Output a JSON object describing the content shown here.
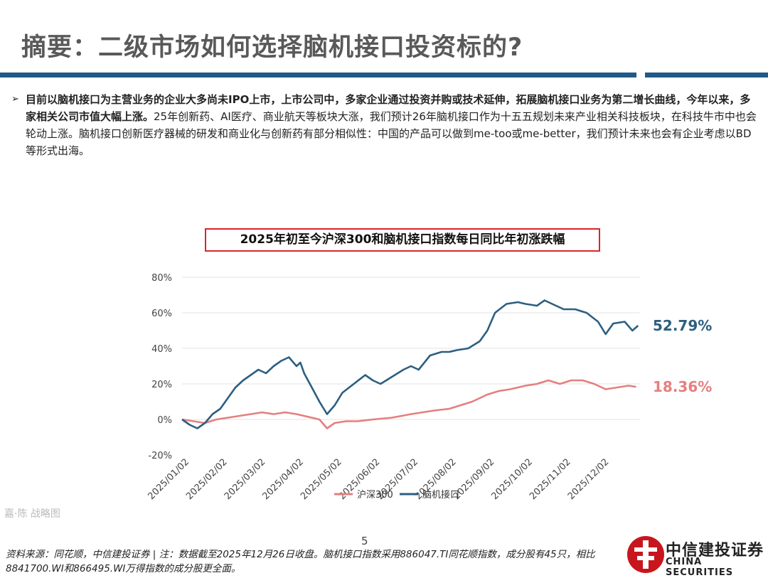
{
  "title": "摘要：二级市场如何选择脑机接口投资标的?",
  "summary": {
    "bold_text": "目前以脑机接口为主营业务的企业大多尚未IPO上市，上市公司中，多家企业通过投资并购或技术延伸，拓展脑机接口业务为第二增长曲线，今年以来，多家相关公司市值大幅上涨。",
    "text": "25年创新药、AI医疗、商业航天等板块大涨，我们预计26年脑机接口作为十五五规划未来产业相关科技板块，在科技牛市中也会轮动上涨。脑机接口创新医疗器械的研发和商业化与创新药有部分相似性：中国的产品可以做到me-too或me-better，我们预计未来也会有企业考虑以BD等形式出海。"
  },
  "watermark": "嘉·陈 战略图",
  "page_number": "5",
  "source_note": "资料来源：同花顺，中信建投证券 | 注：数据截至2025年12月26日收盘。脑机接口指数采用886047.TI同花顺指数，成分股有45只，相比8841700.WI和866495.WI万得指数的成分股更全面。",
  "logo": {
    "cn": "中信建投证券",
    "en": "CHINA SECURITIES",
    "color": "#c8161e"
  },
  "chart_data": {
    "type": "line",
    "title": "2025年初至今沪深300和脑机接口指数每日同比年初涨跌幅",
    "y_ticks": [
      "80%",
      "60%",
      "40%",
      "20%",
      "0%",
      "-20%"
    ],
    "ylim": [
      -20,
      80
    ],
    "x_ticks": [
      "2025/01/02",
      "2025/02/02",
      "2025/03/02",
      "2025/04/02",
      "2025/05/02",
      "2025/06/02",
      "2025/07/02",
      "2025/08/02",
      "2025/09/02",
      "2025/10/02",
      "2025/11/02",
      "2025/12/02"
    ],
    "xlim": [
      0,
      12
    ],
    "grid": "horizontal",
    "legend_position": "bottom",
    "series": [
      {
        "name": "沪深300",
        "color": "#e57f7f",
        "end_label": "18.36%",
        "x": [
          0,
          0.3,
          0.6,
          0.9,
          1.2,
          1.5,
          1.8,
          2.1,
          2.4,
          2.7,
          3.0,
          3.2,
          3.4,
          3.6,
          3.8,
          4.0,
          4.3,
          4.6,
          5.0,
          5.5,
          6.0,
          6.3,
          6.6,
          7.0,
          7.3,
          7.6,
          8.0,
          8.3,
          8.6,
          9.0,
          9.3,
          9.6,
          9.9,
          10.2,
          10.5,
          10.8,
          11.1,
          11.4,
          11.7,
          11.9
        ],
        "y": [
          0,
          -1,
          -2,
          0,
          1,
          2,
          3,
          4,
          3,
          4,
          3,
          2,
          1,
          0,
          -5,
          -2,
          -1,
          -1,
          0,
          1,
          3,
          4,
          5,
          6,
          8,
          10,
          14,
          16,
          17,
          19,
          20,
          22,
          20,
          22,
          22,
          20,
          17,
          18,
          19,
          18.36
        ]
      },
      {
        "name": "脑机接口",
        "color": "#2c5f80",
        "end_label": "52.79%",
        "x": [
          0,
          0.2,
          0.4,
          0.6,
          0.8,
          1.0,
          1.2,
          1.4,
          1.6,
          1.8,
          2.0,
          2.2,
          2.4,
          2.6,
          2.8,
          3.0,
          3.1,
          3.2,
          3.4,
          3.6,
          3.8,
          4.0,
          4.2,
          4.5,
          4.8,
          5.0,
          5.2,
          5.5,
          5.8,
          6.0,
          6.2,
          6.5,
          6.8,
          7.0,
          7.2,
          7.5,
          7.8,
          8.0,
          8.2,
          8.5,
          8.8,
          9.0,
          9.3,
          9.5,
          9.8,
          10.0,
          10.3,
          10.6,
          10.9,
          11.1,
          11.3,
          11.6,
          11.8,
          11.95
        ],
        "y": [
          0,
          -3,
          -5,
          -2,
          3,
          6,
          12,
          18,
          22,
          25,
          28,
          26,
          30,
          33,
          35,
          30,
          32,
          26,
          18,
          10,
          3,
          8,
          15,
          20,
          25,
          22,
          20,
          24,
          28,
          30,
          28,
          36,
          38,
          38,
          39,
          40,
          44,
          50,
          60,
          65,
          66,
          65,
          64,
          67,
          64,
          62,
          62,
          60,
          55,
          48,
          54,
          55,
          50,
          52.79
        ]
      }
    ]
  }
}
